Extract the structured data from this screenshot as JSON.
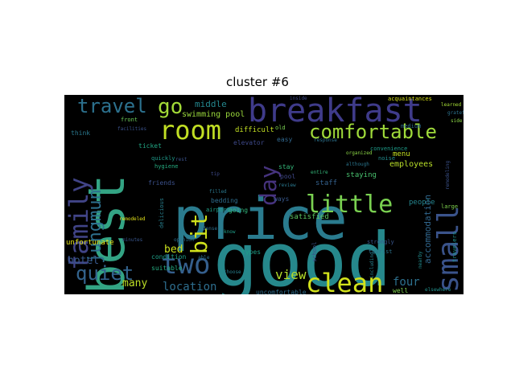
{
  "title": "cluster  #6",
  "colors": {
    "background": "#000000",
    "title": "#000000"
  },
  "words": [
    {
      "text": "price",
      "color": "#2a7b8e"
    },
    {
      "text": "good",
      "color": "#26888c"
    },
    {
      "text": "best",
      "color": "#33a484"
    },
    {
      "text": "breakfast",
      "color": "#3f3b8a"
    },
    {
      "text": "family",
      "color": "#414487"
    },
    {
      "text": "room",
      "color": "#c1df24"
    },
    {
      "text": "clean",
      "color": "#d2e21b"
    },
    {
      "text": "two",
      "color": "#355f8d"
    },
    {
      "text": "comfortable",
      "color": "#9fda3a"
    },
    {
      "text": "little",
      "color": "#7ad151"
    },
    {
      "text": "small",
      "color": "#3a538b"
    },
    {
      "text": "travel",
      "color": "#2c718e"
    },
    {
      "text": "go",
      "color": "#a2da37"
    },
    {
      "text": "quiet",
      "color": "#33638d"
    },
    {
      "text": "jungmun",
      "color": "#2d708e"
    },
    {
      "text": "day",
      "color": "#46337e"
    },
    {
      "text": "bit",
      "color": "#d0e11c"
    },
    {
      "text": "location",
      "color": "#2e6e8e"
    },
    {
      "text": "hotel",
      "color": "#38588c"
    },
    {
      "text": "view",
      "color": "#b5de2b"
    },
    {
      "text": "four",
      "color": "#2d708e"
    },
    {
      "text": "many",
      "color": "#bddf26"
    },
    {
      "text": "middle",
      "color": "#24878e"
    },
    {
      "text": "swimming pool",
      "color": "#9bd93c"
    },
    {
      "text": "accommodation",
      "color": "#31678e"
    },
    {
      "text": "employees",
      "color": "#b8de29"
    },
    {
      "text": "staying",
      "color": "#48c16e"
    },
    {
      "text": "staff",
      "color": "#34618d"
    },
    {
      "text": "satisfied",
      "color": "#5cc863"
    },
    {
      "text": "bed",
      "color": "#cbe11e"
    },
    {
      "text": "bedding",
      "color": "#2e6d8e"
    },
    {
      "text": "condition",
      "color": "#1fa088"
    },
    {
      "text": "suitable",
      "color": "#26ad81"
    },
    {
      "text": "unfortunate",
      "color": "#e5e419"
    },
    {
      "text": "people",
      "color": "#25858e"
    },
    {
      "text": "uncomfortable",
      "color": "#2e6e8e"
    },
    {
      "text": "friends",
      "color": "#3b518b"
    },
    {
      "text": "delicious",
      "color": "#277f8e"
    },
    {
      "text": "easy",
      "color": "#31688e"
    },
    {
      "text": "difficult",
      "color": "#c2df23"
    },
    {
      "text": "stay",
      "color": "#34b679"
    },
    {
      "text": "pool",
      "color": "#3f4889"
    },
    {
      "text": "elevator",
      "color": "#3e4989"
    },
    {
      "text": "ticket",
      "color": "#22a785"
    },
    {
      "text": "think",
      "color": "#2a788e"
    },
    {
      "text": "front",
      "color": "#6ccd5a"
    },
    {
      "text": "travelers",
      "color": "#1f948c"
    },
    {
      "text": "ways",
      "color": "#38588c"
    },
    {
      "text": "medium",
      "color": "#2e6f8e"
    },
    {
      "text": "going",
      "color": "#31b57b"
    },
    {
      "text": "airport",
      "color": "#1fa188"
    },
    {
      "text": "types",
      "color": "#1fa088"
    },
    {
      "text": "school",
      "color": "#3b528b"
    },
    {
      "text": "strongly",
      "color": "#39568c"
    },
    {
      "text": "tourist",
      "color": "#2c738e"
    },
    {
      "text": "menu",
      "color": "#c5e021"
    },
    {
      "text": "noise",
      "color": "#228b8d"
    },
    {
      "text": "convenience",
      "color": "#1e9c89"
    },
    {
      "text": "acquaintances",
      "color": "#d8e219"
    },
    {
      "text": "learned",
      "color": "#a5db36"
    },
    {
      "text": "well",
      "color": "#7fd34e"
    },
    {
      "text": "elsewhere",
      "color": "#21918c"
    },
    {
      "text": "old",
      "color": "#7ad151"
    },
    {
      "text": "inside",
      "color": "#3e4a89"
    },
    {
      "text": "response",
      "color": "#2c728e"
    },
    {
      "text": "organized",
      "color": "#8bd646"
    },
    {
      "text": "although",
      "color": "#2a768e"
    },
    {
      "text": "hygiene",
      "color": "#26ad81"
    },
    {
      "text": "quickly",
      "color": "#1f9a8a"
    },
    {
      "text": "facilities",
      "color": "#3b528b"
    },
    {
      "text": "opinion",
      "color": "#2d708e"
    },
    {
      "text": "remodeled",
      "color": "#e5e419"
    },
    {
      "text": "filled",
      "color": "#2a788e"
    },
    {
      "text": "dense",
      "color": "#2e6f8e"
    },
    {
      "text": "tip",
      "color": "#3e4a89"
    },
    {
      "text": "including",
      "color": "#26828e"
    },
    {
      "text": "large",
      "color": "#7fd34e"
    },
    {
      "text": "remodeling",
      "color": "#3b528b"
    },
    {
      "text": "grateful",
      "color": "#2c728e"
    },
    {
      "text": "side",
      "color": "#8bd646"
    },
    {
      "text": "nearby",
      "color": "#228c8d"
    },
    {
      "text": "choose",
      "color": "#277f8e"
    },
    {
      "text": "know",
      "color": "#1f9e89"
    },
    {
      "text": "able",
      "color": "#2d708e"
    },
    {
      "text": "minutes",
      "color": "#39568c"
    },
    {
      "text": "review",
      "color": "#2a788e"
    },
    {
      "text": "rest",
      "color": "#3b528b"
    },
    {
      "text": "entire",
      "color": "#35b779"
    }
  ]
}
